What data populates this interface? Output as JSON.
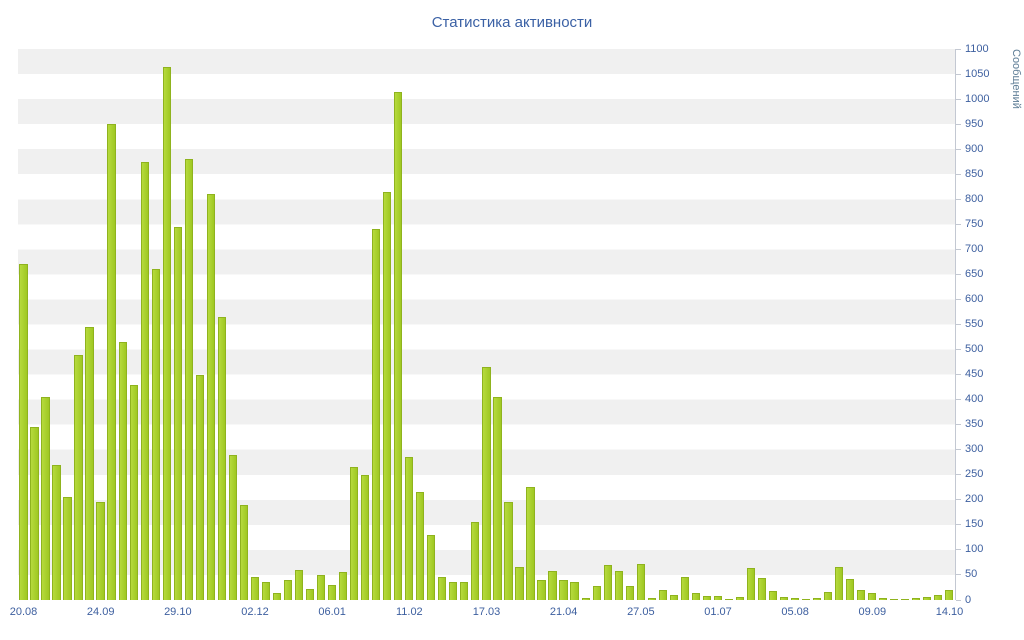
{
  "page": {
    "background": "#ffffff"
  },
  "chart_data": {
    "type": "bar",
    "title": "Статистика активности",
    "xlabel": "",
    "ylabel": "Сообщений",
    "legend": "none",
    "grid": "alternating-horizontal-bands",
    "ylim": [
      0,
      1100
    ],
    "y_tick_step": 50,
    "y_tick_labels": [
      "0",
      "50",
      "100",
      "150",
      "200",
      "250",
      "300",
      "350",
      "400",
      "450",
      "500",
      "550",
      "600",
      "650",
      "700",
      "750",
      "800",
      "850",
      "900",
      "950",
      "1000",
      "1050",
      "1100"
    ],
    "x_tick_labels": [
      "20.08",
      "24.09",
      "29.10",
      "02.12",
      "06.01",
      "11.02",
      "17.03",
      "21.04",
      "27.05",
      "01.07",
      "05.08",
      "09.09",
      "14.10"
    ],
    "x_tick_every_n_bars": 7,
    "values": [
      670,
      345,
      405,
      270,
      205,
      490,
      545,
      195,
      950,
      515,
      430,
      875,
      660,
      1065,
      745,
      880,
      450,
      810,
      565,
      290,
      190,
      45,
      35,
      15,
      40,
      60,
      22,
      50,
      30,
      55,
      265,
      250,
      740,
      815,
      1015,
      285,
      215,
      130,
      45,
      35,
      35,
      155,
      465,
      405,
      195,
      65,
      225,
      40,
      58,
      40,
      35,
      5,
      28,
      70,
      58,
      28,
      72,
      4,
      20,
      10,
      46,
      14,
      8,
      8,
      2,
      6,
      64,
      44,
      18,
      6,
      4,
      2,
      4,
      16,
      65,
      42,
      20,
      15,
      5,
      3,
      2,
      4,
      6,
      10,
      20
    ],
    "colors": {
      "bar_fill": "#a8d028",
      "bar_border": "#8fb31e",
      "band_stripe": "#f0f0f0",
      "axis_line": "#c3c8d2",
      "title_text": "#3b61a5",
      "axis_label_text": "#3d5f9f",
      "y_axis_title_text": "#5e7d96"
    }
  }
}
